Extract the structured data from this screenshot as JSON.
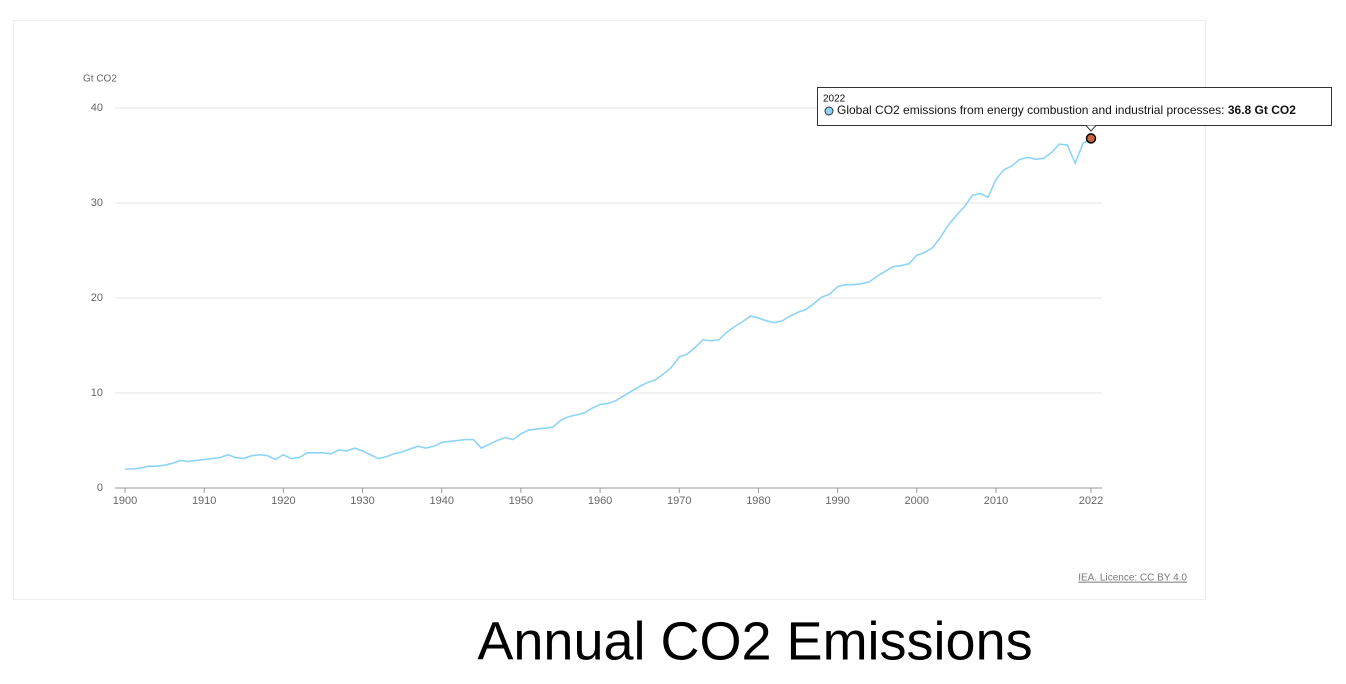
{
  "chart_data": {
    "type": "line",
    "y_axis_label": "Gt CO2",
    "x": [
      1900,
      1901,
      1902,
      1903,
      1904,
      1905,
      1906,
      1907,
      1908,
      1909,
      1910,
      1911,
      1912,
      1913,
      1914,
      1915,
      1916,
      1917,
      1918,
      1919,
      1920,
      1921,
      1922,
      1923,
      1924,
      1925,
      1926,
      1927,
      1928,
      1929,
      1930,
      1931,
      1932,
      1933,
      1934,
      1935,
      1936,
      1937,
      1938,
      1939,
      1940,
      1941,
      1942,
      1943,
      1944,
      1945,
      1946,
      1947,
      1948,
      1949,
      1950,
      1951,
      1952,
      1953,
      1954,
      1955,
      1956,
      1957,
      1958,
      1959,
      1960,
      1961,
      1962,
      1963,
      1964,
      1965,
      1966,
      1967,
      1968,
      1969,
      1970,
      1971,
      1972,
      1973,
      1974,
      1975,
      1976,
      1977,
      1978,
      1979,
      1980,
      1981,
      1982,
      1983,
      1984,
      1985,
      1986,
      1987,
      1988,
      1989,
      1990,
      1991,
      1992,
      1993,
      1994,
      1995,
      1996,
      1997,
      1998,
      1999,
      2000,
      2001,
      2002,
      2003,
      2004,
      2005,
      2006,
      2007,
      2008,
      2009,
      2010,
      2011,
      2012,
      2013,
      2014,
      2015,
      2016,
      2017,
      2018,
      2019,
      2020,
      2021,
      2022
    ],
    "series": [
      {
        "name": "Global CO2 emissions from energy combustion and industrial processes",
        "color": "#8ed4f6",
        "values": [
          2.0,
          2.0,
          2.1,
          2.3,
          2.3,
          2.4,
          2.6,
          2.9,
          2.8,
          2.9,
          3.0,
          3.1,
          3.2,
          3.5,
          3.2,
          3.1,
          3.4,
          3.5,
          3.4,
          3.0,
          3.5,
          3.1,
          3.2,
          3.7,
          3.7,
          3.7,
          3.6,
          4.0,
          3.9,
          4.2,
          3.9,
          3.5,
          3.1,
          3.3,
          3.6,
          3.8,
          4.1,
          4.4,
          4.2,
          4.4,
          4.8,
          4.9,
          5.0,
          5.1,
          5.1,
          4.2,
          4.6,
          5.0,
          5.3,
          5.1,
          5.7,
          6.1,
          6.2,
          6.3,
          6.4,
          7.1,
          7.5,
          7.7,
          7.9,
          8.4,
          8.8,
          8.9,
          9.2,
          9.7,
          10.2,
          10.7,
          11.1,
          11.4,
          12.0,
          12.7,
          13.8,
          14.1,
          14.8,
          15.6,
          15.5,
          15.6,
          16.4,
          17.0,
          17.5,
          18.1,
          17.9,
          17.6,
          17.4,
          17.6,
          18.1,
          18.5,
          18.8,
          19.4,
          20.1,
          20.4,
          21.2,
          21.4,
          21.4,
          21.5,
          21.7,
          22.3,
          22.8,
          23.3,
          23.4,
          23.6,
          24.5,
          24.8,
          25.3,
          26.4,
          27.7,
          28.7,
          29.6,
          30.8,
          31.0,
          30.6,
          32.5,
          33.5,
          33.9,
          34.6,
          34.8,
          34.6,
          34.7,
          35.3,
          36.2,
          36.1,
          34.2,
          36.3,
          36.8
        ]
      }
    ],
    "xlim": [
      1900,
      2022
    ],
    "xticks": [
      1900,
      1910,
      1920,
      1930,
      1940,
      1950,
      1960,
      1970,
      1980,
      1990,
      2000,
      2010,
      2022
    ],
    "ylim": [
      0,
      40
    ],
    "yticks": [
      0,
      10,
      20,
      30,
      40
    ],
    "grid": true,
    "tooltip": {
      "year": "2022",
      "label": "Global CO2 emissions from energy combustion and industrial processes:",
      "value": "36.8 Gt CO2"
    },
    "source": "IEA. Licence: CC BY 4.0",
    "caption": "Annual CO2 Emissions"
  }
}
